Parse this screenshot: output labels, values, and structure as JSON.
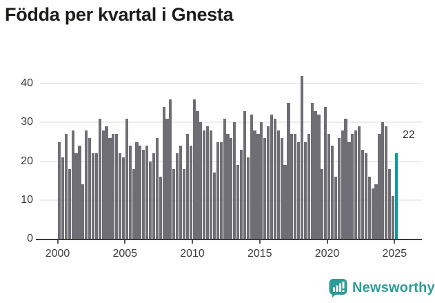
{
  "title": "Födda per kvartal i Gnesta",
  "chart_data": {
    "type": "bar",
    "frequency": "quarterly",
    "x_start": "2000-Q1",
    "x_end": "2025-Q1",
    "values": [
      25,
      21,
      27,
      18,
      28,
      22,
      24,
      14,
      28,
      26,
      22,
      22,
      31,
      28,
      29,
      26,
      27,
      27,
      22,
      21,
      31,
      24,
      18,
      25,
      24,
      23,
      24,
      20,
      22,
      26,
      16,
      34,
      31,
      36,
      18,
      22,
      24,
      18,
      27,
      24,
      36,
      33,
      30,
      28,
      29,
      28,
      17,
      25,
      25,
      31,
      27,
      26,
      30,
      19,
      23,
      33,
      21,
      32,
      28,
      27,
      30,
      26,
      29,
      32,
      31,
      28,
      26,
      19,
      35,
      27,
      27,
      25,
      42,
      25,
      27,
      35,
      33,
      32,
      18,
      34,
      27,
      24,
      16,
      26,
      28,
      31,
      25,
      27,
      28,
      29,
      23,
      22,
      16,
      13,
      14,
      27,
      30,
      29,
      18,
      11,
      22
    ],
    "highlight_last": true,
    "last_value_label": "22",
    "ylim": [
      0,
      44
    ],
    "yticks": [
      0,
      10,
      20,
      30,
      40
    ],
    "xticks": [
      "2000",
      "2005",
      "2010",
      "2015",
      "2020",
      "2025"
    ],
    "grid": "horizontal",
    "legend": "none"
  },
  "y_axis": {
    "tick_labels": [
      "0",
      "10",
      "20",
      "30",
      "40"
    ]
  },
  "x_axis": {
    "tick_labels": [
      "2000",
      "2005",
      "2010",
      "2015",
      "2020",
      "2025"
    ]
  },
  "annotation": {
    "text": "22"
  },
  "colors": {
    "bar": "#6f6e74",
    "highlight": "#0b9d9a",
    "brand": "#2e9c96",
    "title": "#1d1d1b",
    "axis_label": "#3a3a3a",
    "gridline": "#ececec",
    "axis_line": "#3c3c3c",
    "background": "#ffffff"
  },
  "branding": {
    "name": "Newsworthy",
    "icon": "newsworthy-chart-bubble-icon"
  }
}
